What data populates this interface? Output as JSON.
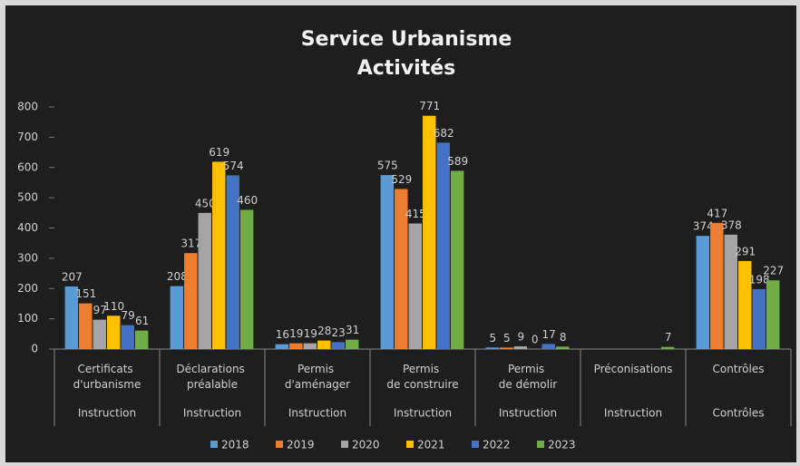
{
  "chart_data": {
    "type": "bar",
    "title": "Service Urbanisme",
    "subtitle": "Activités",
    "categories": [
      "Certificats d'urbanisme",
      "Déclarations préalable",
      "Permis d'aménager",
      "Permis de construire",
      "Permis de démolir",
      "Préconisations",
      "Contrôles"
    ],
    "category_groups": [
      "Instruction",
      "Instruction",
      "Instruction",
      "Instruction",
      "Instruction",
      "Instruction",
      "Contrôles"
    ],
    "series": [
      {
        "name": "2018",
        "color": "#5b9bd5",
        "values": [
          207,
          208,
          16,
          575,
          5,
          null,
          374
        ]
      },
      {
        "name": "2019",
        "color": "#ed7d31",
        "values": [
          151,
          317,
          19,
          529,
          5,
          null,
          417
        ]
      },
      {
        "name": "2020",
        "color": "#a5a5a5",
        "values": [
          97,
          450,
          19,
          415,
          9,
          null,
          378
        ]
      },
      {
        "name": "2021",
        "color": "#ffc000",
        "values": [
          110,
          619,
          28,
          771,
          0,
          null,
          291
        ]
      },
      {
        "name": "2022",
        "color": "#4472c4",
        "values": [
          79,
          574,
          23,
          682,
          17,
          null,
          198
        ]
      },
      {
        "name": "2023",
        "color": "#70ad47",
        "values": [
          61,
          460,
          31,
          589,
          8,
          7,
          227
        ]
      }
    ],
    "ylim": [
      0,
      800
    ],
    "yticks": [
      0,
      100,
      200,
      300,
      400,
      500,
      600,
      700,
      800
    ],
    "legend": "bottom"
  }
}
